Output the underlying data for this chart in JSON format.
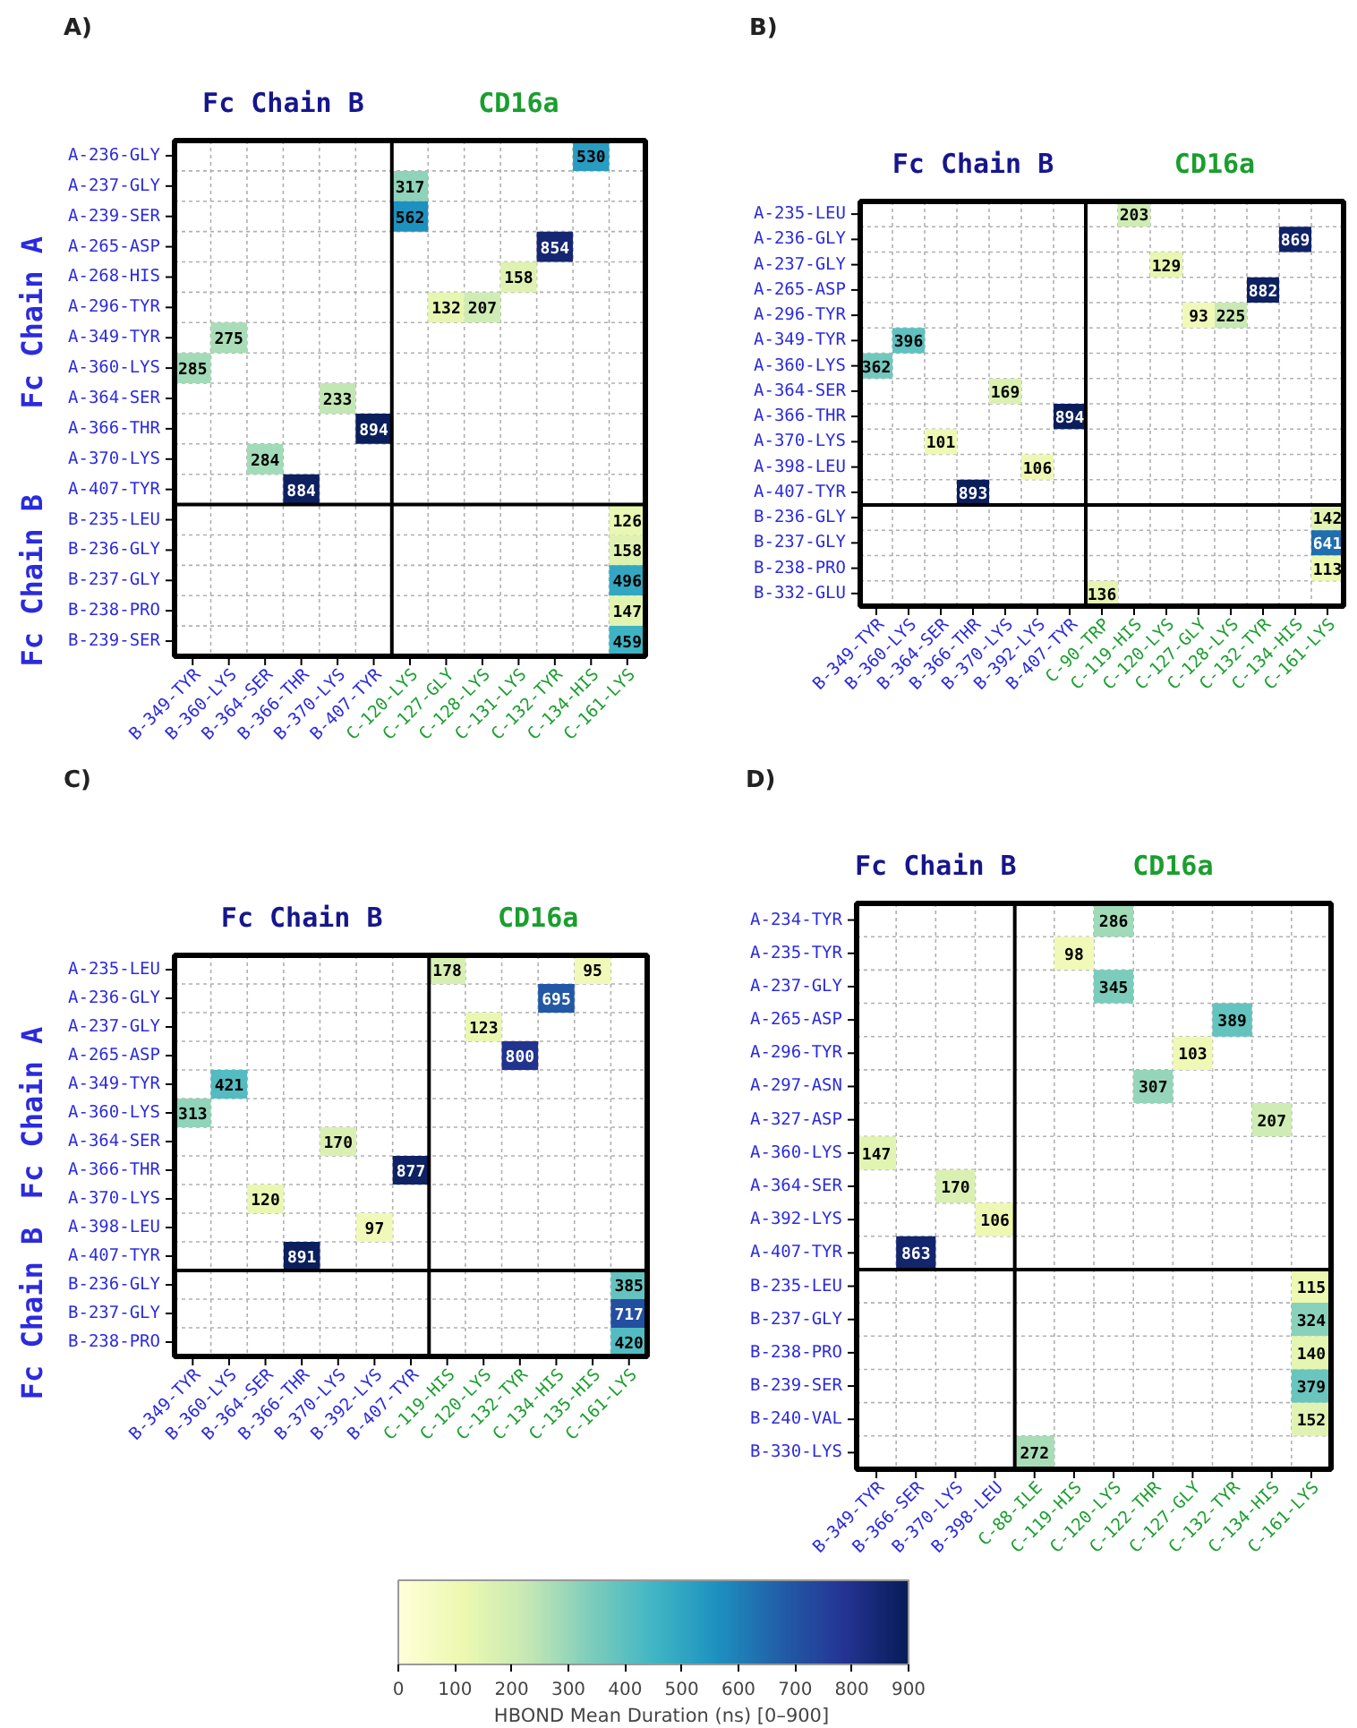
{
  "chart_data": [
    {
      "type": "heatmap",
      "title": "A)",
      "grid": true,
      "data_labels": true,
      "categories": [
        "B-349-TYR",
        "B-360-LYS",
        "B-364-SER",
        "B-366-THR",
        "B-370-LYS",
        "B-407-TYR",
        "C-120-LYS",
        "C-127-GLY",
        "C-128-LYS",
        "C-131-LYS",
        "C-132-TYR",
        "C-134-HIS",
        "C-161-LYS"
      ],
      "y_categories": [
        "A-236-GLY",
        "A-237-GLY",
        "A-239-SER",
        "A-265-ASP",
        "A-268-HIS",
        "A-296-TYR",
        "A-349-TYR",
        "A-360-LYS",
        "A-364-SER",
        "A-366-THR",
        "A-370-LYS",
        "A-407-TYR",
        "B-235-LEU",
        "B-236-GLY",
        "B-237-GLY",
        "B-238-PRO",
        "B-239-SER"
      ],
      "cells": [
        [
          null,
          null,
          null,
          null,
          null,
          null,
          null,
          null,
          null,
          null,
          null,
          530,
          null
        ],
        [
          null,
          null,
          null,
          null,
          null,
          null,
          317,
          null,
          null,
          null,
          null,
          null,
          null
        ],
        [
          null,
          null,
          null,
          null,
          null,
          null,
          562,
          null,
          null,
          null,
          null,
          null,
          null
        ],
        [
          null,
          null,
          null,
          null,
          null,
          null,
          null,
          null,
          null,
          null,
          854,
          null,
          null
        ],
        [
          null,
          null,
          null,
          null,
          null,
          null,
          null,
          null,
          null,
          158,
          null,
          null,
          null
        ],
        [
          null,
          null,
          null,
          null,
          null,
          null,
          null,
          132,
          207,
          null,
          null,
          null,
          null
        ],
        [
          null,
          275,
          null,
          null,
          null,
          null,
          null,
          null,
          null,
          null,
          null,
          null,
          null
        ],
        [
          285,
          null,
          null,
          null,
          null,
          null,
          null,
          null,
          null,
          null,
          null,
          null,
          null
        ],
        [
          null,
          null,
          null,
          null,
          233,
          null,
          null,
          null,
          null,
          null,
          null,
          null,
          null
        ],
        [
          null,
          null,
          null,
          null,
          null,
          894,
          null,
          null,
          null,
          null,
          null,
          null,
          null
        ],
        [
          null,
          null,
          284,
          null,
          null,
          null,
          null,
          null,
          null,
          null,
          null,
          null,
          null
        ],
        [
          null,
          null,
          null,
          884,
          null,
          null,
          null,
          null,
          null,
          null,
          null,
          null,
          null
        ],
        [
          null,
          null,
          null,
          null,
          null,
          null,
          null,
          null,
          null,
          null,
          null,
          null,
          126
        ],
        [
          null,
          null,
          null,
          null,
          null,
          null,
          null,
          null,
          null,
          null,
          null,
          null,
          158
        ],
        [
          null,
          null,
          null,
          null,
          null,
          null,
          null,
          null,
          null,
          null,
          null,
          null,
          496
        ],
        [
          null,
          null,
          null,
          null,
          null,
          null,
          null,
          null,
          null,
          null,
          null,
          null,
          147
        ],
        [
          null,
          null,
          null,
          null,
          null,
          null,
          null,
          null,
          null,
          null,
          null,
          null,
          459
        ]
      ],
      "annotations": [
        "Fc Chain B",
        "CD16a",
        "Fc Chain A",
        "Fc Chain B"
      ]
    },
    {
      "type": "heatmap",
      "title": "B)",
      "grid": true,
      "data_labels": true,
      "categories": [
        "B-349-TYR",
        "B-360-LYS",
        "B-364-SER",
        "B-366-THR",
        "B-370-LYS",
        "B-392-LYS",
        "B-407-TYR",
        "C-90-TRP",
        "C-119-HIS",
        "C-120-LYS",
        "C-127-GLY",
        "C-128-LYS",
        "C-132-TYR",
        "C-134-HIS",
        "C-161-LYS"
      ],
      "y_categories": [
        "A-235-LEU",
        "A-236-GLY",
        "A-237-GLY",
        "A-265-ASP",
        "A-296-TYR",
        "A-349-TYR",
        "A-360-LYS",
        "A-364-SER",
        "A-366-THR",
        "A-370-LYS",
        "A-398-LEU",
        "A-407-TYR",
        "B-236-GLY",
        "B-237-GLY",
        "B-238-PRO",
        "B-332-GLU"
      ],
      "cells": [
        [
          null,
          null,
          null,
          null,
          null,
          null,
          null,
          null,
          203,
          null,
          null,
          null,
          null,
          null,
          null
        ],
        [
          null,
          null,
          null,
          null,
          null,
          null,
          null,
          null,
          null,
          null,
          null,
          null,
          null,
          869,
          null
        ],
        [
          null,
          null,
          null,
          null,
          null,
          null,
          null,
          null,
          null,
          129,
          null,
          null,
          null,
          null,
          null
        ],
        [
          null,
          null,
          null,
          null,
          null,
          null,
          null,
          null,
          null,
          null,
          null,
          null,
          882,
          null,
          null
        ],
        [
          null,
          null,
          null,
          null,
          null,
          null,
          null,
          null,
          null,
          null,
          93,
          225,
          null,
          null,
          null
        ],
        [
          null,
          396,
          null,
          null,
          null,
          null,
          null,
          null,
          null,
          null,
          null,
          null,
          null,
          null,
          null
        ],
        [
          362,
          null,
          null,
          null,
          null,
          null,
          null,
          null,
          null,
          null,
          null,
          null,
          null,
          null,
          null
        ],
        [
          null,
          null,
          null,
          null,
          169,
          null,
          null,
          null,
          null,
          null,
          null,
          null,
          null,
          null,
          null
        ],
        [
          null,
          null,
          null,
          null,
          null,
          null,
          894,
          null,
          null,
          null,
          null,
          null,
          null,
          null,
          null
        ],
        [
          null,
          null,
          101,
          null,
          null,
          null,
          null,
          null,
          null,
          null,
          null,
          null,
          null,
          null,
          null
        ],
        [
          null,
          null,
          null,
          null,
          null,
          106,
          null,
          null,
          null,
          null,
          null,
          null,
          null,
          null,
          null
        ],
        [
          null,
          null,
          null,
          893,
          null,
          null,
          null,
          null,
          null,
          null,
          null,
          null,
          null,
          null,
          null
        ],
        [
          null,
          null,
          null,
          null,
          null,
          null,
          null,
          null,
          null,
          null,
          null,
          null,
          null,
          null,
          142
        ],
        [
          null,
          null,
          null,
          null,
          null,
          null,
          null,
          null,
          null,
          null,
          null,
          null,
          null,
          null,
          641
        ],
        [
          null,
          null,
          null,
          null,
          null,
          null,
          null,
          null,
          null,
          null,
          null,
          null,
          null,
          null,
          113
        ],
        [
          null,
          null,
          null,
          null,
          null,
          null,
          null,
          136,
          null,
          null,
          null,
          null,
          null,
          null,
          null
        ]
      ],
      "annotations": [
        "Fc Chain B",
        "CD16a"
      ]
    },
    {
      "type": "heatmap",
      "title": "C)",
      "grid": true,
      "data_labels": true,
      "categories": [
        "B-349-TYR",
        "B-360-LYS",
        "B-364-SER",
        "B-366-THR",
        "B-370-LYS",
        "B-392-LYS",
        "B-407-TYR",
        "C-119-HIS",
        "C-120-LYS",
        "C-132-TYR",
        "C-134-HIS",
        "C-135-HIS",
        "C-161-LYS"
      ],
      "y_categories": [
        "A-235-LEU",
        "A-236-GLY",
        "A-237-GLY",
        "A-265-ASP",
        "A-349-TYR",
        "A-360-LYS",
        "A-364-SER",
        "A-366-THR",
        "A-370-LYS",
        "A-398-LEU",
        "A-407-TYR",
        "B-236-GLY",
        "B-237-GLY",
        "B-238-PRO"
      ],
      "cells": [
        [
          null,
          null,
          null,
          null,
          null,
          null,
          null,
          178,
          null,
          null,
          null,
          95,
          null
        ],
        [
          null,
          null,
          null,
          null,
          null,
          null,
          null,
          null,
          null,
          null,
          695,
          null,
          null
        ],
        [
          null,
          null,
          null,
          null,
          null,
          null,
          null,
          null,
          123,
          null,
          null,
          null,
          null
        ],
        [
          null,
          null,
          null,
          null,
          null,
          null,
          null,
          null,
          null,
          800,
          null,
          null,
          null
        ],
        [
          null,
          421,
          null,
          null,
          null,
          null,
          null,
          null,
          null,
          null,
          null,
          null,
          null
        ],
        [
          313,
          null,
          null,
          null,
          null,
          null,
          null,
          null,
          null,
          null,
          null,
          null,
          null
        ],
        [
          null,
          null,
          null,
          null,
          170,
          null,
          null,
          null,
          null,
          null,
          null,
          null,
          null
        ],
        [
          null,
          null,
          null,
          null,
          null,
          null,
          877,
          null,
          null,
          null,
          null,
          null,
          null
        ],
        [
          null,
          null,
          120,
          null,
          null,
          null,
          null,
          null,
          null,
          null,
          null,
          null,
          null
        ],
        [
          null,
          null,
          null,
          null,
          null,
          97,
          null,
          null,
          null,
          null,
          null,
          null,
          null
        ],
        [
          null,
          null,
          null,
          891,
          null,
          null,
          null,
          null,
          null,
          null,
          null,
          null,
          null
        ],
        [
          null,
          null,
          null,
          null,
          null,
          null,
          null,
          null,
          null,
          null,
          null,
          null,
          385
        ],
        [
          null,
          null,
          null,
          null,
          null,
          null,
          null,
          null,
          null,
          null,
          null,
          null,
          717
        ],
        [
          null,
          null,
          null,
          null,
          null,
          null,
          null,
          null,
          null,
          null,
          null,
          null,
          420
        ]
      ],
      "annotations": [
        "Fc Chain B",
        "CD16a",
        "Fc Chain A",
        "Fc Chain B"
      ]
    },
    {
      "type": "heatmap",
      "title": "D)",
      "grid": true,
      "data_labels": true,
      "clim": [
        0,
        900
      ],
      "cticks": [
        0,
        100,
        200,
        300,
        400,
        500,
        600,
        700,
        800,
        900
      ],
      "clabel": "HBOND Mean Duration (ns) [0–900]",
      "categories": [
        "B-349-TYR",
        "B-366-SER",
        "B-370-LYS",
        "B-398-LEU",
        "C-88-ILE",
        "C-119-HIS",
        "C-120-LYS",
        "C-122-THR",
        "C-127-GLY",
        "C-132-TYR",
        "C-134-HIS",
        "C-161-LYS"
      ],
      "y_categories": [
        "A-234-TYR",
        "A-235-TYR",
        "A-237-GLY",
        "A-265-ASP",
        "A-296-TYR",
        "A-297-ASN",
        "A-327-ASP",
        "A-360-LYS",
        "A-364-SER",
        "A-392-LYS",
        "A-407-TYR",
        "B-235-LEU",
        "B-237-GLY",
        "B-238-PRO",
        "B-239-SER",
        "B-240-VAL",
        "B-330-LYS"
      ],
      "cells": [
        [
          null,
          null,
          null,
          null,
          null,
          null,
          286,
          null,
          null,
          null,
          null,
          null
        ],
        [
          null,
          null,
          null,
          null,
          null,
          98,
          null,
          null,
          null,
          null,
          null,
          null
        ],
        [
          null,
          null,
          null,
          null,
          null,
          null,
          345,
          null,
          null,
          null,
          null,
          null
        ],
        [
          null,
          null,
          null,
          null,
          null,
          null,
          null,
          null,
          null,
          389,
          null,
          null
        ],
        [
          null,
          null,
          null,
          null,
          null,
          null,
          null,
          null,
          103,
          null,
          null,
          null
        ],
        [
          null,
          null,
          null,
          null,
          null,
          null,
          null,
          307,
          null,
          null,
          null,
          null
        ],
        [
          null,
          null,
          null,
          null,
          null,
          null,
          null,
          null,
          null,
          null,
          207,
          null
        ],
        [
          147,
          null,
          null,
          null,
          null,
          null,
          null,
          null,
          null,
          null,
          null,
          null
        ],
        [
          null,
          null,
          170,
          null,
          null,
          null,
          null,
          null,
          null,
          null,
          null,
          null
        ],
        [
          null,
          null,
          null,
          106,
          null,
          null,
          null,
          null,
          null,
          null,
          null,
          null
        ],
        [
          null,
          863,
          null,
          null,
          null,
          null,
          null,
          null,
          null,
          null,
          null,
          null
        ],
        [
          null,
          null,
          null,
          null,
          null,
          null,
          null,
          null,
          null,
          null,
          null,
          115
        ],
        [
          null,
          null,
          null,
          null,
          null,
          null,
          null,
          null,
          null,
          null,
          null,
          324
        ],
        [
          null,
          null,
          null,
          null,
          null,
          null,
          null,
          null,
          null,
          null,
          null,
          140
        ],
        [
          null,
          null,
          null,
          null,
          null,
          null,
          null,
          null,
          null,
          null,
          null,
          379
        ],
        [
          null,
          null,
          null,
          null,
          null,
          null,
          null,
          null,
          null,
          null,
          null,
          152
        ],
        [
          null,
          null,
          null,
          null,
          272,
          null,
          null,
          null,
          null,
          null,
          null,
          null
        ]
      ],
      "annotations": [
        "Fc Chain B",
        "CD16a"
      ]
    }
  ]
}
